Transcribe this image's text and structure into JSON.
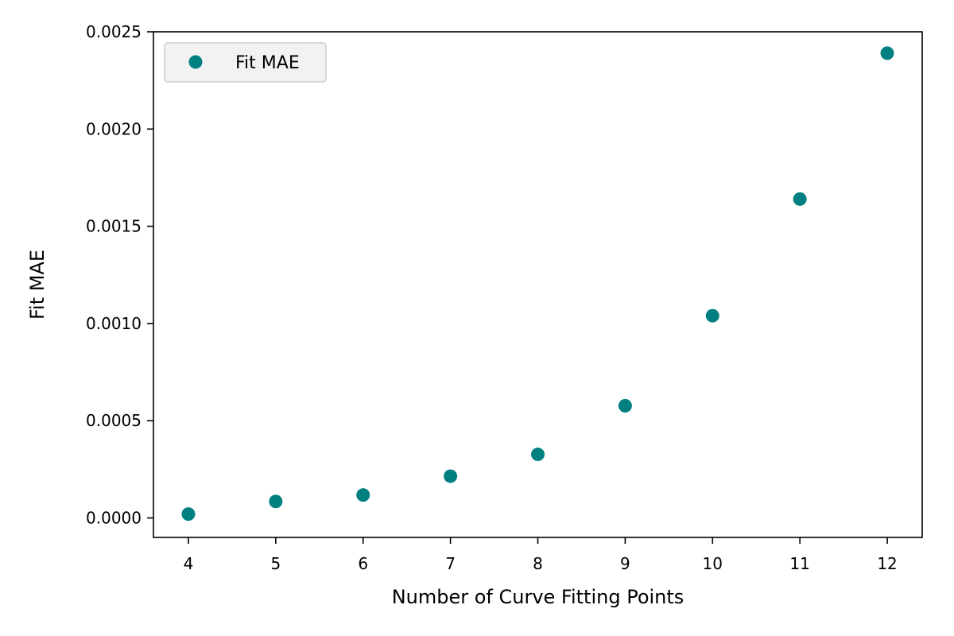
{
  "chart_data": {
    "type": "scatter",
    "xlabel": "Number of Curve Fitting Points",
    "ylabel": "Fit MAE",
    "x_ticks": [
      4,
      5,
      6,
      7,
      8,
      9,
      10,
      11,
      12
    ],
    "y_ticks": [
      "0.0000",
      "0.0005",
      "0.0010",
      "0.0015",
      "0.0020",
      "0.0025"
    ],
    "xlim": [
      3.6,
      12.4
    ],
    "ylim": [
      -0.0001,
      0.0025
    ],
    "grid": false,
    "legend_position": "top-left",
    "series": [
      {
        "name": "Fit MAE",
        "color": "#008080",
        "marker": "circle",
        "x": [
          4,
          5,
          6,
          7,
          8,
          9,
          10,
          11,
          12
        ],
        "y": [
          2e-05,
          8.5e-05,
          0.000118,
          0.000215,
          0.000327,
          0.000577,
          0.00104,
          0.00164,
          0.00239
        ]
      }
    ]
  }
}
